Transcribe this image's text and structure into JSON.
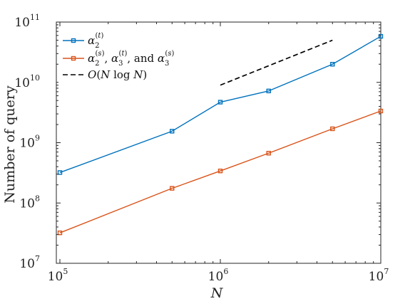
{
  "chart_data": {
    "type": "line",
    "xscale": "log",
    "yscale": "log",
    "xlim": [
      95000,
      10000000
    ],
    "ylim": [
      10000000,
      100000000000
    ],
    "xlabel": "N",
    "ylabel": "Number of query",
    "x_ticks": [
      {
        "value": 100000,
        "base": "10",
        "exp": "5"
      },
      {
        "value": 1000000,
        "base": "10",
        "exp": "6"
      },
      {
        "value": 10000000,
        "base": "10",
        "exp": "7"
      }
    ],
    "y_ticks": [
      {
        "value": 10000000,
        "base": "10",
        "exp": "7"
      },
      {
        "value": 100000000,
        "base": "10",
        "exp": "8"
      },
      {
        "value": 1000000000,
        "base": "10",
        "exp": "9"
      },
      {
        "value": 10000000000,
        "base": "10",
        "exp": "10"
      },
      {
        "value": 100000000000,
        "base": "10",
        "exp": "11"
      }
    ],
    "grid": false,
    "legend_position": "top-left",
    "series": [
      {
        "legend": "α_2^(t)",
        "color": "#0072BD",
        "marker": "square",
        "line_style": "solid",
        "x": [
          100000,
          500000,
          1000000,
          2000000,
          5000000,
          10000000
        ],
        "y": [
          320000000,
          1550000000,
          4700000000,
          7200000000,
          20000000000,
          58000000000
        ]
      },
      {
        "legend": "α_2^(s), α_3^(t), and α_3^(s)",
        "color": "#D95319",
        "marker": "square",
        "line_style": "solid",
        "x": [
          100000,
          500000,
          1000000,
          2000000,
          5000000,
          10000000
        ],
        "y": [
          32000000,
          175000000,
          340000000,
          670000000,
          1700000000,
          3350000000
        ]
      },
      {
        "legend": "O(N log N)",
        "color": "#000000",
        "marker": "none",
        "line_style": "dashed",
        "x": [
          1000000,
          5000000
        ],
        "y": [
          9000000000,
          50000000000
        ]
      }
    ]
  }
}
